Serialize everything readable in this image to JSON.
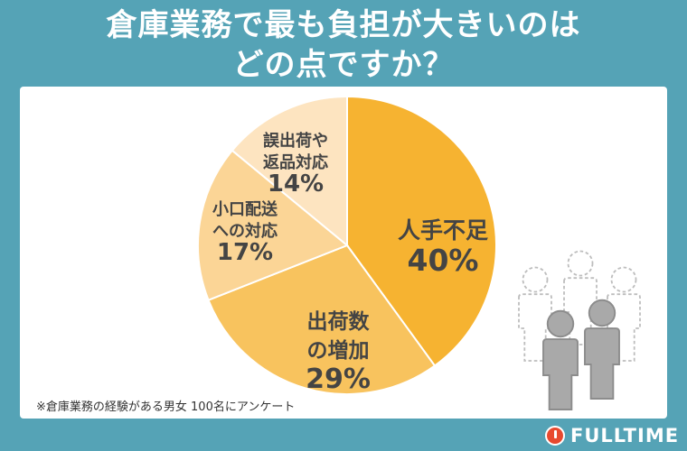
{
  "title_line1": "倉庫業務で最も負担が大きいのは",
  "title_line2": "どの点ですか？",
  "note": "※倉庫業務の経験がある男女 100名にアンケート",
  "logo_text": "FULLTIME",
  "chart_data": {
    "type": "pie",
    "start_angle_deg": 0,
    "direction": "clockwise",
    "slices": [
      {
        "label_lines": [
          "人手不足"
        ],
        "value": 40,
        "value_label": "40%",
        "color": "#f6b331"
      },
      {
        "label_lines": [
          "出荷数",
          "の増加"
        ],
        "value": 29,
        "value_label": "29%",
        "color": "#f8c35e"
      },
      {
        "label_lines": [
          "小口配送",
          "への対応"
        ],
        "value": 17,
        "value_label": "17%",
        "color": "#fbd596"
      },
      {
        "label_lines": [
          "誤出荷や",
          "返品対応"
        ],
        "value": 14,
        "value_label": "14%",
        "color": "#fde4c0"
      }
    ]
  },
  "colors": {
    "background": "#55a3b6",
    "card": "#ffffff",
    "people_solid": "#a9a9a9",
    "people_dashed": "#bdbdbd"
  },
  "icons": [
    "people-group-icon",
    "fulltime-logo-icon"
  ]
}
